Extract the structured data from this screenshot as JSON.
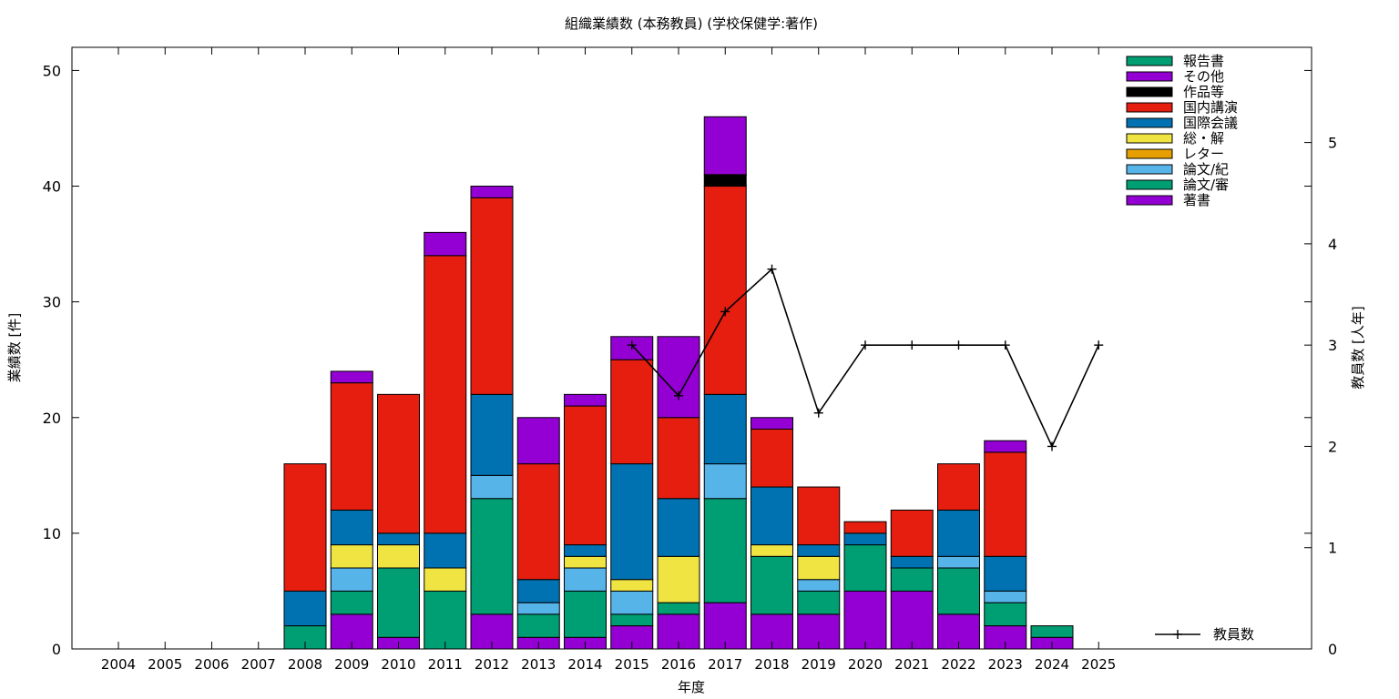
{
  "chart_data": {
    "type": "bar",
    "stacked": true,
    "title": "組織業績数 (本務教員) (学校保健学:著作)",
    "xlabel": "年度",
    "ylabel": "業績数 [件]",
    "y2label": "教員数 [人年]",
    "ylim": [
      0,
      52
    ],
    "y2lim": [
      0,
      5.94
    ],
    "yticks": [
      0,
      10,
      20,
      30,
      40,
      50
    ],
    "y2ticks": [
      0,
      1,
      2,
      3,
      4,
      5
    ],
    "grid": false,
    "legend_position": "top-right",
    "categories": [
      "2004",
      "2005",
      "2006",
      "2007",
      "2008",
      "2009",
      "2010",
      "2011",
      "2012",
      "2013",
      "2014",
      "2015",
      "2016",
      "2017",
      "2018",
      "2019",
      "2020",
      "2021",
      "2022",
      "2023",
      "2024",
      "2025"
    ],
    "series": [
      {
        "name": "著書",
        "color": "#9400d3",
        "values": [
          0,
          0,
          0,
          0,
          0,
          3,
          1,
          0,
          3,
          1,
          1,
          2,
          3,
          4,
          3,
          3,
          5,
          5,
          3,
          2,
          1,
          0
        ]
      },
      {
        "name": "論文/審",
        "color": "#009e73",
        "values": [
          0,
          0,
          0,
          0,
          2,
          2,
          6,
          5,
          10,
          2,
          4,
          1,
          1,
          9,
          5,
          2,
          4,
          2,
          4,
          2,
          1,
          0
        ]
      },
      {
        "name": "論文/紀",
        "color": "#56b4e9",
        "values": [
          0,
          0,
          0,
          0,
          0,
          2,
          0,
          0,
          2,
          1,
          2,
          2,
          0,
          3,
          0,
          1,
          0,
          0,
          1,
          1,
          0,
          0
        ]
      },
      {
        "name": "レター",
        "color": "#e69f00",
        "values": [
          0,
          0,
          0,
          0,
          0,
          0,
          0,
          0,
          0,
          0,
          0,
          0,
          0,
          0,
          0,
          0,
          0,
          0,
          0,
          0,
          0,
          0
        ]
      },
      {
        "name": "総・解",
        "color": "#f0e442",
        "values": [
          0,
          0,
          0,
          0,
          0,
          2,
          2,
          2,
          0,
          0,
          1,
          1,
          4,
          0,
          1,
          2,
          0,
          0,
          0,
          0,
          0,
          0
        ]
      },
      {
        "name": "国際会議",
        "color": "#0072b2",
        "values": [
          0,
          0,
          0,
          0,
          3,
          3,
          1,
          3,
          7,
          2,
          1,
          10,
          5,
          6,
          5,
          1,
          1,
          1,
          4,
          3,
          0,
          0
        ]
      },
      {
        "name": "国内講演",
        "color": "#e51e10",
        "values": [
          0,
          0,
          0,
          0,
          11,
          11,
          12,
          24,
          17,
          10,
          12,
          9,
          7,
          18,
          5,
          5,
          1,
          4,
          4,
          9,
          0,
          0
        ]
      },
      {
        "name": "作品等",
        "color": "#000000",
        "values": [
          0,
          0,
          0,
          0,
          0,
          0,
          0,
          0,
          0,
          0,
          0,
          0,
          0,
          1,
          0,
          0,
          0,
          0,
          0,
          0,
          0,
          0
        ]
      },
      {
        "name": "その他",
        "color": "#9400d3",
        "values": [
          0,
          0,
          0,
          0,
          0,
          1,
          0,
          2,
          1,
          4,
          1,
          2,
          7,
          5,
          1,
          0,
          0,
          0,
          0,
          1,
          0,
          0
        ]
      },
      {
        "name": "報告書",
        "color": "#009e73",
        "values": [
          0,
          0,
          0,
          0,
          0,
          0,
          0,
          0,
          0,
          0,
          0,
          0,
          0,
          0,
          0,
          0,
          0,
          0,
          0,
          0,
          0,
          0
        ]
      }
    ],
    "line_series": {
      "name": "教員数",
      "axis": "y2",
      "color": "#000000",
      "points": [
        {
          "x": "2015",
          "y": 3.0
        },
        {
          "x": "2016",
          "y": 2.5
        },
        {
          "x": "2017",
          "y": 3.33
        },
        {
          "x": "2018",
          "y": 3.75
        },
        {
          "x": "2019",
          "y": 2.33
        },
        {
          "x": "2020",
          "y": 3.0
        },
        {
          "x": "2021",
          "y": 3.0
        },
        {
          "x": "2022",
          "y": 3.0
        },
        {
          "x": "2023",
          "y": 3.0
        },
        {
          "x": "2024",
          "y": 2.0
        },
        {
          "x": "2025",
          "y": 3.0
        }
      ]
    },
    "legend_order": [
      "報告書",
      "その他",
      "作品等",
      "国内講演",
      "国際会議",
      "総・解",
      "レター",
      "論文/紀",
      "論文/審",
      "著書"
    ]
  }
}
